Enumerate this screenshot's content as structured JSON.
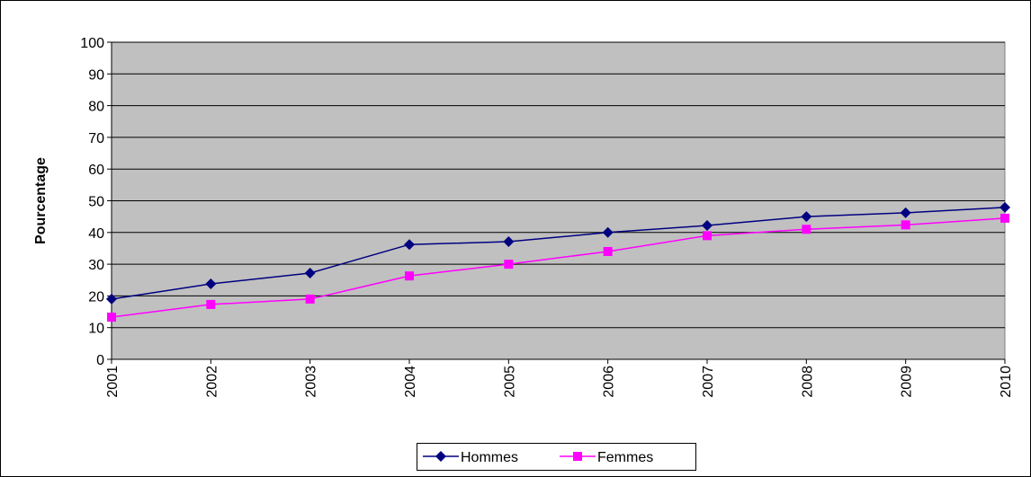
{
  "chart_data": {
    "type": "line",
    "y_label": "Pourcentage",
    "categories": [
      "2001",
      "2002",
      "2003",
      "2004",
      "2005",
      "2006",
      "2007",
      "2008",
      "2009",
      "2010"
    ],
    "series": [
      {
        "name": "Hommes",
        "color": "#000080",
        "marker": "diamond",
        "values": [
          19,
          23.8,
          27.2,
          36.2,
          37.1,
          40,
          42.2,
          45,
          46.2,
          47.9
        ]
      },
      {
        "name": "Femmes",
        "color": "#ff00ff",
        "marker": "square",
        "values": [
          13.3,
          17.3,
          19,
          26.3,
          30,
          34,
          39,
          41,
          42.4,
          44.5
        ]
      }
    ],
    "ylim": [
      0,
      100
    ],
    "yticks": [
      0,
      10,
      20,
      30,
      40,
      50,
      60,
      70,
      80,
      90,
      100
    ],
    "grid": true,
    "plot_background": "#c0c0c0",
    "legend": "bottom"
  }
}
